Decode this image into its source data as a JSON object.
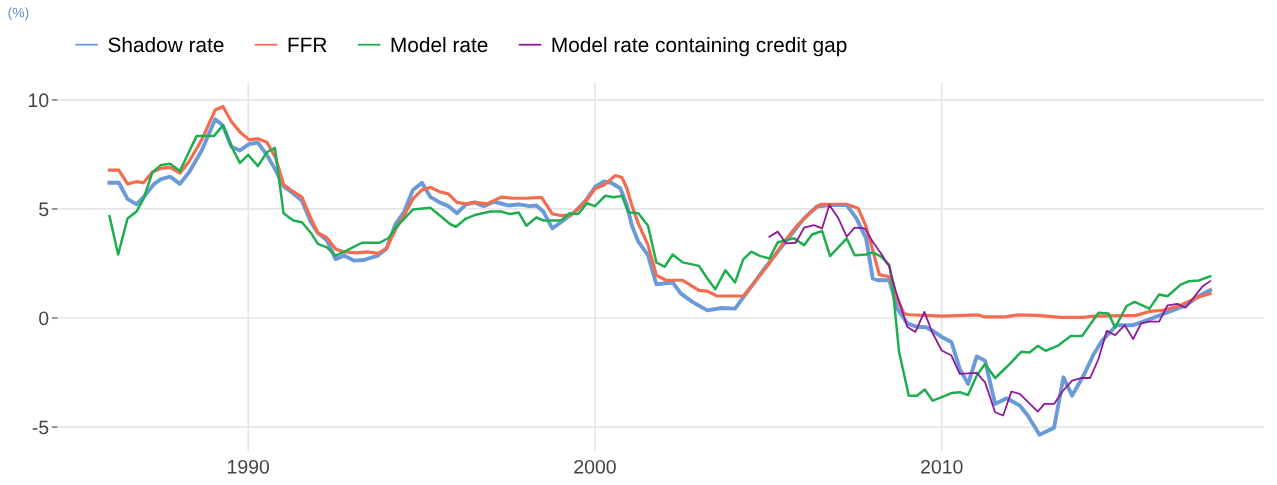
{
  "chart_data": {
    "type": "line",
    "ylabel": "(%)",
    "xlim": [
      1984.5,
      2019.3
    ],
    "ylim": [
      -6.1,
      10.8
    ],
    "xticks": [
      1990,
      2000,
      2010
    ],
    "yticks": [
      -5,
      0,
      5,
      10
    ],
    "grid": true,
    "legend": "top left",
    "line_style": "solid",
    "marker": "none",
    "series": [
      {
        "name": "Shadow rate",
        "color": "#6a9bd8",
        "x": [
          1986.0,
          1986.27,
          1986.52,
          1986.78,
          1986.98,
          1987.29,
          1987.49,
          1987.75,
          1988.03,
          1988.3,
          1988.66,
          1989.05,
          1989.27,
          1989.52,
          1989.76,
          1990.03,
          1990.28,
          1990.54,
          1990.79,
          1991.02,
          1991.3,
          1991.55,
          1991.81,
          1992.01,
          1992.27,
          1992.52,
          1992.77,
          1993.05,
          1993.33,
          1993.74,
          1993.99,
          1994.25,
          1994.5,
          1994.75,
          1995.01,
          1995.26,
          1995.52,
          1995.77,
          1996.02,
          1996.28,
          1996.53,
          1996.79,
          1997.09,
          1997.5,
          1997.8,
          1998.11,
          1998.31,
          1998.51,
          1998.77,
          1999.02,
          1999.43,
          1999.73,
          2000.02,
          2000.26,
          2000.49,
          2000.73,
          2000.92,
          2001.06,
          2001.25,
          2001.53,
          2001.77,
          2002.24,
          2002.48,
          2002.81,
          2003.24,
          2003.66,
          2004.04,
          2004.32,
          2004.61,
          2004.89,
          2005.27,
          2005.65,
          2006.03,
          2006.4,
          2006.78,
          2007.26,
          2007.54,
          2007.82,
          2008.01,
          2008.16,
          2008.49,
          2008.72,
          2009.01,
          2009.29,
          2009.53,
          2009.72,
          2010.0,
          2010.28,
          2010.52,
          2010.76,
          2011.01,
          2011.25,
          2011.54,
          2011.87,
          2012.25,
          2012.48,
          2012.82,
          2013.24,
          2013.51,
          2013.76,
          2014.09,
          2014.38,
          2014.62,
          2015.04,
          2015.52,
          2015.99,
          2016.56,
          2017.03,
          2017.41,
          2017.74
        ],
        "values": [
          6.2,
          6.2,
          5.46,
          5.21,
          5.54,
          6.15,
          6.37,
          6.48,
          6.15,
          6.69,
          7.68,
          9.11,
          8.83,
          7.85,
          7.68,
          7.98,
          8.04,
          7.47,
          6.78,
          6.04,
          5.71,
          5.38,
          4.39,
          3.9,
          3.57,
          2.7,
          2.86,
          2.63,
          2.66,
          2.86,
          3.19,
          4.31,
          4.88,
          5.87,
          6.2,
          5.54,
          5.3,
          5.13,
          4.8,
          5.21,
          5.3,
          5.13,
          5.33,
          5.16,
          5.21,
          5.13,
          5.16,
          4.88,
          4.11,
          4.39,
          4.88,
          5.38,
          6.03,
          6.26,
          6.18,
          5.95,
          5.18,
          4.26,
          3.5,
          2.88,
          1.55,
          1.63,
          1.12,
          0.74,
          0.35,
          0.46,
          0.43,
          1.04,
          1.66,
          2.27,
          3.04,
          3.8,
          4.57,
          5.11,
          5.18,
          5.18,
          4.57,
          3.65,
          1.81,
          1.73,
          1.73,
          0.43,
          -0.26,
          -0.41,
          -0.41,
          -0.57,
          -0.87,
          -1.1,
          -2.33,
          -3.02,
          -1.76,
          -1.96,
          -3.94,
          -3.68,
          -4.01,
          -4.47,
          -5.35,
          -5.03,
          -2.72,
          -3.56,
          -2.64,
          -1.66,
          -1.05,
          -0.33,
          -0.33,
          -0.06,
          0.29,
          0.58,
          1.0,
          1.28
        ]
      },
      {
        "name": "FFR",
        "color": "#f26d4f",
        "x": [
          1986.0,
          1986.27,
          1986.52,
          1986.78,
          1986.98,
          1987.24,
          1987.49,
          1987.75,
          1988.03,
          1988.3,
          1988.66,
          1989.05,
          1989.27,
          1989.52,
          1989.78,
          1990.03,
          1990.28,
          1990.54,
          1990.79,
          1991.02,
          1991.3,
          1991.55,
          1991.81,
          1992.01,
          1992.27,
          1992.52,
          1992.77,
          1993.13,
          1993.43,
          1993.74,
          1993.99,
          1994.25,
          1994.5,
          1994.75,
          1995.01,
          1995.26,
          1995.52,
          1995.77,
          1996.02,
          1996.28,
          1996.53,
          1996.89,
          1997.29,
          1997.65,
          1998.0,
          1998.46,
          1998.77,
          1999.02,
          1999.32,
          1999.73,
          2000.0,
          2000.26,
          2000.59,
          2000.78,
          2000.92,
          2001.06,
          2001.25,
          2001.53,
          2001.77,
          2002.05,
          2002.53,
          2003.0,
          2003.24,
          2003.52,
          2004.28,
          2004.61,
          2004.99,
          2005.46,
          2005.84,
          2006.22,
          2006.5,
          2007.26,
          2007.59,
          2007.82,
          2007.97,
          2008.2,
          2008.49,
          2008.68,
          2008.91,
          2009.05,
          2010.02,
          2011.06,
          2011.25,
          2011.82,
          2012.2,
          2012.77,
          2013.43,
          2014.09,
          2014.38,
          2015.61,
          2015.99,
          2016.37,
          2016.84,
          2017.41,
          2017.74
        ],
        "values": [
          6.78,
          6.78,
          6.15,
          6.25,
          6.2,
          6.69,
          6.86,
          6.91,
          6.64,
          7.19,
          8.17,
          9.54,
          9.7,
          9.0,
          8.5,
          8.17,
          8.22,
          8.06,
          7.35,
          6.12,
          5.79,
          5.54,
          4.56,
          3.9,
          3.68,
          3.16,
          3.03,
          2.99,
          3.03,
          2.96,
          3.19,
          4.06,
          4.72,
          5.46,
          5.87,
          5.99,
          5.79,
          5.69,
          5.3,
          5.23,
          5.3,
          5.23,
          5.54,
          5.49,
          5.49,
          5.53,
          4.77,
          4.7,
          4.72,
          5.33,
          5.92,
          6.1,
          6.53,
          6.44,
          5.95,
          5.18,
          4.34,
          3.34,
          1.96,
          1.73,
          1.73,
          1.27,
          1.23,
          1.01,
          1.01,
          1.66,
          2.42,
          3.5,
          4.26,
          4.85,
          5.21,
          5.21,
          5.03,
          4.19,
          3.34,
          1.99,
          1.89,
          1.04,
          0.2,
          0.15,
          0.09,
          0.14,
          0.05,
          0.05,
          0.14,
          0.12,
          0.03,
          0.03,
          0.09,
          0.12,
          0.3,
          0.35,
          0.55,
          0.97,
          1.12
        ]
      },
      {
        "name": "Model rate",
        "color": "#1fae4f",
        "x": [
          1986.0,
          1986.25,
          1986.52,
          1986.78,
          1986.98,
          1987.24,
          1987.49,
          1987.75,
          1988.03,
          1988.51,
          1989.01,
          1989.27,
          1989.52,
          1989.76,
          1990.0,
          1990.28,
          1990.54,
          1990.77,
          1991.02,
          1991.3,
          1991.55,
          1991.81,
          1992.01,
          1992.27,
          1992.52,
          1992.82,
          1993.28,
          1993.79,
          1994.06,
          1994.25,
          1994.75,
          1995.26,
          1995.57,
          1995.82,
          1995.99,
          1996.28,
          1996.53,
          1996.99,
          1997.29,
          1997.55,
          1997.8,
          1998.02,
          1998.31,
          1998.51,
          1999.02,
          1999.27,
          1999.52,
          1999.77,
          2000.0,
          2000.3,
          2000.54,
          2000.78,
          2000.96,
          2001.25,
          2001.53,
          2001.77,
          2002.01,
          2002.24,
          2002.53,
          2003.0,
          2003.24,
          2003.47,
          2003.76,
          2004.04,
          2004.28,
          2004.51,
          2004.75,
          2005.03,
          2005.27,
          2005.74,
          2006.03,
          2006.26,
          2006.55,
          2006.78,
          2007.26,
          2007.49,
          2007.82,
          2008.01,
          2008.25,
          2008.49,
          2008.58,
          2008.77,
          2009.05,
          2009.29,
          2009.51,
          2009.74,
          2010.0,
          2010.28,
          2010.52,
          2010.76,
          2011.01,
          2011.25,
          2011.54,
          2011.91,
          2012.29,
          2012.53,
          2012.77,
          2013.0,
          2013.34,
          2013.72,
          2014.05,
          2014.52,
          2014.81,
          2015.0,
          2015.33,
          2015.56,
          2015.99,
          2016.27,
          2016.51,
          2016.89,
          2017.13,
          2017.41,
          2017.74
        ],
        "values": [
          4.67,
          2.91,
          4.56,
          4.88,
          5.46,
          6.69,
          7.02,
          7.07,
          6.74,
          8.34,
          8.34,
          8.83,
          7.85,
          7.11,
          7.48,
          6.97,
          7.6,
          7.8,
          4.8,
          4.47,
          4.39,
          3.9,
          3.4,
          3.24,
          2.86,
          3.08,
          3.45,
          3.45,
          3.68,
          4.14,
          4.97,
          5.05,
          4.64,
          4.31,
          4.18,
          4.56,
          4.72,
          4.88,
          4.88,
          4.77,
          4.84,
          4.23,
          4.61,
          4.47,
          4.47,
          4.8,
          4.77,
          5.26,
          5.13,
          5.61,
          5.54,
          5.6,
          4.85,
          4.8,
          4.23,
          2.55,
          2.35,
          2.91,
          2.55,
          2.39,
          1.81,
          1.32,
          2.19,
          1.63,
          2.7,
          3.04,
          2.85,
          2.73,
          3.47,
          3.65,
          3.34,
          3.83,
          3.99,
          2.84,
          3.65,
          2.88,
          2.91,
          3.01,
          2.81,
          2.42,
          1.5,
          -1.56,
          -3.56,
          -3.56,
          -3.28,
          -3.79,
          -3.63,
          -3.44,
          -3.4,
          -3.53,
          -2.64,
          -2.11,
          -2.75,
          -2.19,
          -1.55,
          -1.58,
          -1.28,
          -1.5,
          -1.28,
          -0.82,
          -0.82,
          0.24,
          0.21,
          -0.44,
          0.55,
          0.74,
          0.43,
          1.08,
          1.0,
          1.53,
          1.69,
          1.72,
          1.91
        ]
      },
      {
        "name": "Model rate containing credit gap",
        "color": "#8e1a9a",
        "x": [
          2005.03,
          2005.27,
          2005.51,
          2005.79,
          2006.03,
          2006.31,
          2006.55,
          2006.76,
          2007.02,
          2007.26,
          2007.49,
          2007.78,
          2008.01,
          2008.25,
          2008.49,
          2008.68,
          2009.01,
          2009.24,
          2009.5,
          2009.72,
          2010.0,
          2010.28,
          2010.52,
          2011.01,
          2011.25,
          2011.54,
          2011.77,
          2012.01,
          2012.25,
          2012.77,
          2012.96,
          2013.24,
          2013.48,
          2013.76,
          2014.05,
          2014.28,
          2014.52,
          2014.76,
          2015.0,
          2015.28,
          2015.52,
          2015.75,
          2015.99,
          2016.27,
          2016.51,
          2016.8,
          2017.03,
          2017.51,
          2017.74
        ],
        "values": [
          3.73,
          3.96,
          3.42,
          3.45,
          4.14,
          4.26,
          4.11,
          5.18,
          4.57,
          3.73,
          4.14,
          4.11,
          3.5,
          2.96,
          2.35,
          1.2,
          -0.41,
          -0.64,
          0.28,
          -0.64,
          -1.49,
          -1.72,
          -2.56,
          -2.52,
          -2.95,
          -4.32,
          -4.47,
          -3.37,
          -3.48,
          -4.29,
          -3.94,
          -3.94,
          -3.37,
          -2.87,
          -2.75,
          -2.75,
          -1.88,
          -0.59,
          -0.79,
          -0.33,
          -0.97,
          -0.24,
          -0.17,
          -0.17,
          0.58,
          0.65,
          0.47,
          1.43,
          1.69
        ]
      }
    ]
  }
}
